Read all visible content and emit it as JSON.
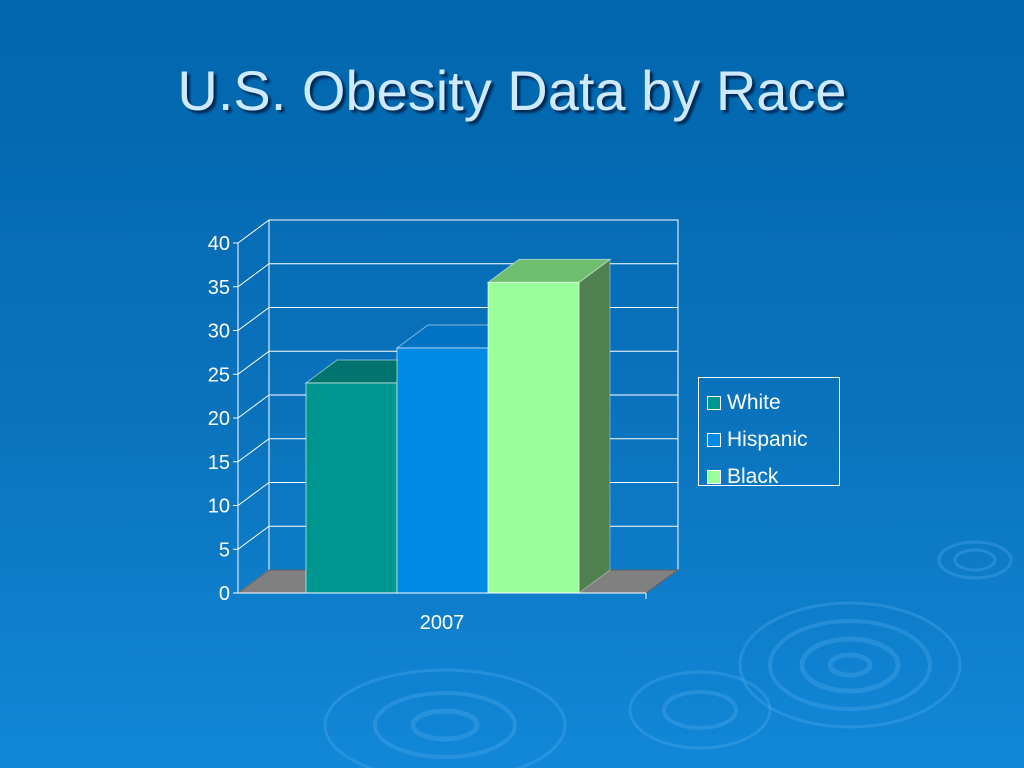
{
  "slide": {
    "title": "U.S. Obesity Data by Race"
  },
  "chart_data": {
    "type": "bar",
    "title": "",
    "categories": [
      "2007"
    ],
    "series": [
      {
        "name": "White",
        "values": [
          24
        ],
        "color": "#009690",
        "top": "#00736e",
        "side": "#006e6a"
      },
      {
        "name": "Hispanic",
        "values": [
          28
        ],
        "color": "#008ae6",
        "top": "#0072c4",
        "side": "#0064b0"
      },
      {
        "name": "Black",
        "values": [
          35.5
        ],
        "color": "#99ff99",
        "top": "#6dbf6d",
        "side": "#508050"
      }
    ],
    "ylim": [
      0,
      40
    ],
    "yticks": [
      0,
      5,
      10,
      15,
      20,
      25,
      30,
      35,
      40
    ],
    "xlabel": "",
    "ylabel": "",
    "grid": true,
    "legend": "right",
    "floor_color": "#808080"
  }
}
